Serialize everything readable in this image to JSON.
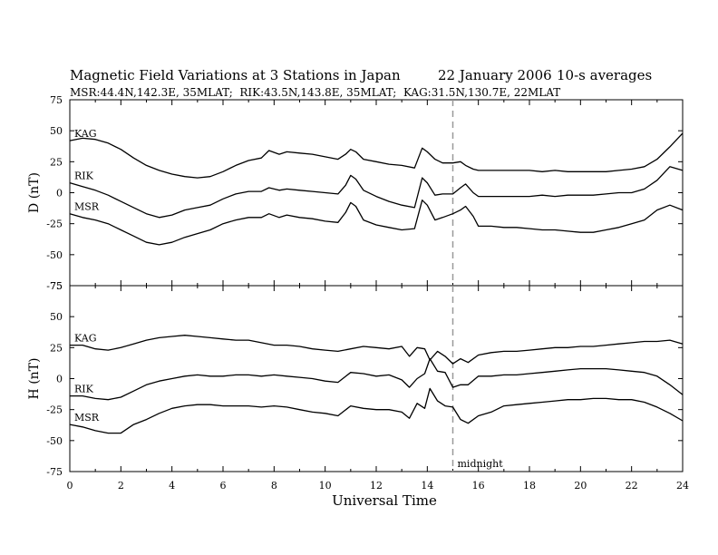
{
  "header": {
    "title": "Magnetic Field Variations at 3 Stations in Japan",
    "date": "22 January 2006",
    "averaging": "10-s averages",
    "stations_info": "MSR:44.4N,142.3E, 35MLAT;  RIK:43.5N,143.8E, 35MLAT;  KAG:31.5N,130.7E, 22MLAT"
  },
  "chart_data": {
    "type": "line",
    "xlabel": "Universal Time",
    "xlim": [
      0,
      24
    ],
    "x_ticks": [
      0,
      2,
      4,
      6,
      8,
      10,
      12,
      14,
      16,
      18,
      20,
      22,
      24
    ],
    "midnight": {
      "x": 15,
      "label": "midnight",
      "style": "dashed",
      "color": "#999999"
    },
    "panels": [
      {
        "ylabel": "D (nT)",
        "ylim": [
          -75,
          75
        ],
        "y_ticks": [
          75,
          50,
          25,
          0,
          -25,
          -50,
          -75
        ],
        "series": [
          {
            "name": "KAG",
            "x": [
              0,
              0.5,
              1,
              1.5,
              2,
              2.5,
              3,
              3.5,
              4,
              4.5,
              5,
              5.5,
              6,
              6.5,
              7,
              7.5,
              7.8,
              8.2,
              8.5,
              9,
              9.5,
              10,
              10.5,
              10.8,
              11,
              11.2,
              11.5,
              12,
              12.5,
              13,
              13.5,
              13.8,
              14,
              14.3,
              14.6,
              15,
              15.3,
              15.5,
              15.8,
              16,
              16.5,
              17,
              17.5,
              18,
              18.5,
              19,
              19.5,
              20,
              20.5,
              21,
              21.5,
              22,
              22.5,
              23,
              23.5,
              24
            ],
            "y": [
              42,
              44,
              43,
              40,
              35,
              28,
              22,
              18,
              15,
              13,
              12,
              13,
              17,
              22,
              26,
              28,
              34,
              31,
              33,
              32,
              31,
              29,
              27,
              31,
              35,
              33,
              27,
              25,
              23,
              22,
              20,
              36,
              33,
              27,
              24,
              24,
              25,
              22,
              19,
              18,
              18,
              18,
              18,
              18,
              17,
              18,
              17,
              17,
              17,
              17,
              18,
              19,
              21,
              27,
              37,
              48
            ]
          },
          {
            "name": "RIK",
            "x": [
              0,
              0.5,
              1,
              1.5,
              2,
              2.5,
              3,
              3.5,
              4,
              4.5,
              5,
              5.5,
              6,
              6.5,
              7,
              7.5,
              7.8,
              8.2,
              8.5,
              9,
              9.5,
              10,
              10.5,
              10.8,
              11,
              11.2,
              11.5,
              12,
              12.5,
              13,
              13.5,
              13.8,
              14,
              14.3,
              14.6,
              15,
              15.3,
              15.5,
              15.8,
              16,
              16.5,
              17,
              17.5,
              18,
              18.5,
              19,
              19.5,
              20,
              20.5,
              21,
              21.5,
              22,
              22.5,
              23,
              23.5,
              24
            ],
            "y": [
              8,
              5,
              2,
              -2,
              -7,
              -12,
              -17,
              -20,
              -18,
              -14,
              -12,
              -10,
              -5,
              -1,
              1,
              1,
              4,
              2,
              3,
              2,
              1,
              0,
              -1,
              6,
              14,
              11,
              2,
              -3,
              -7,
              -10,
              -12,
              12,
              8,
              -2,
              -1,
              -1,
              4,
              7,
              0,
              -3,
              -3,
              -3,
              -3,
              -3,
              -2,
              -3,
              -2,
              -2,
              -2,
              -1,
              0,
              0,
              3,
              10,
              21,
              18
            ]
          },
          {
            "name": "MSR",
            "x": [
              0,
              0.5,
              1,
              1.5,
              2,
              2.5,
              3,
              3.5,
              4,
              4.5,
              5,
              5.5,
              6,
              6.5,
              7,
              7.5,
              7.8,
              8.2,
              8.5,
              9,
              9.5,
              10,
              10.5,
              10.8,
              11,
              11.2,
              11.5,
              12,
              12.5,
              13,
              13.5,
              13.8,
              14,
              14.3,
              14.6,
              15,
              15.3,
              15.5,
              15.8,
              16,
              16.5,
              17,
              17.5,
              18,
              18.5,
              19,
              19.5,
              20,
              20.5,
              21,
              21.5,
              22,
              22.5,
              23,
              23.5,
              24
            ],
            "y": [
              -17,
              -20,
              -22,
              -25,
              -30,
              -35,
              -40,
              -42,
              -40,
              -36,
              -33,
              -30,
              -25,
              -22,
              -20,
              -20,
              -17,
              -20,
              -18,
              -20,
              -21,
              -23,
              -24,
              -16,
              -8,
              -11,
              -22,
              -26,
              -28,
              -30,
              -29,
              -6,
              -10,
              -22,
              -20,
              -17,
              -14,
              -11,
              -19,
              -27,
              -27,
              -28,
              -28,
              -29,
              -30,
              -30,
              -31,
              -32,
              -32,
              -30,
              -28,
              -25,
              -22,
              -14,
              -10,
              -14
            ]
          }
        ]
      },
      {
        "ylabel": "H (nT)",
        "ylim": [
          -75,
          75
        ],
        "y_ticks": [
          75,
          50,
          25,
          0,
          -25,
          -50,
          -75
        ],
        "series": [
          {
            "name": "KAG",
            "x": [
              0,
              0.5,
              1,
              1.5,
              2,
              2.5,
              3,
              3.5,
              4,
              4.5,
              5,
              5.5,
              6,
              6.5,
              7,
              7.5,
              8,
              8.5,
              9,
              9.5,
              10,
              10.5,
              11,
              11.5,
              12,
              12.5,
              13,
              13.3,
              13.6,
              13.9,
              14.1,
              14.4,
              14.7,
              15,
              15.3,
              15.6,
              16,
              16.5,
              17,
              17.5,
              18,
              18.5,
              19,
              19.5,
              20,
              20.5,
              21,
              21.5,
              22,
              22.5,
              23,
              23.5,
              24
            ],
            "y": [
              27,
              27,
              24,
              23,
              25,
              28,
              31,
              33,
              34,
              35,
              34,
              33,
              32,
              31,
              31,
              29,
              27,
              27,
              26,
              24,
              23,
              22,
              24,
              26,
              25,
              24,
              26,
              18,
              25,
              24,
              15,
              22,
              18,
              12,
              16,
              13,
              19,
              21,
              22,
              22,
              23,
              24,
              25,
              25,
              26,
              26,
              27,
              28,
              29,
              30,
              30,
              31,
              28
            ]
          },
          {
            "name": "RIK",
            "x": [
              0,
              0.5,
              1,
              1.5,
              2,
              2.5,
              3,
              3.5,
              4,
              4.5,
              5,
              5.5,
              6,
              6.5,
              7,
              7.5,
              8,
              8.5,
              9,
              9.5,
              10,
              10.5,
              11,
              11.5,
              12,
              12.5,
              13,
              13.3,
              13.6,
              13.9,
              14.1,
              14.4,
              14.7,
              15,
              15.3,
              15.6,
              16,
              16.5,
              17,
              17.5,
              18,
              18.5,
              19,
              19.5,
              20,
              20.5,
              21,
              21.5,
              22,
              22.5,
              23,
              23.5,
              24
            ],
            "y": [
              -14,
              -14,
              -16,
              -17,
              -15,
              -10,
              -5,
              -2,
              0,
              2,
              3,
              2,
              2,
              3,
              3,
              2,
              3,
              2,
              1,
              0,
              -2,
              -3,
              5,
              4,
              2,
              3,
              -1,
              -7,
              0,
              4,
              16,
              6,
              5,
              -7,
              -5,
              -5,
              2,
              2,
              3,
              3,
              4,
              5,
              6,
              7,
              8,
              8,
              8,
              7,
              6,
              5,
              2,
              -5,
              -13
            ]
          },
          {
            "name": "MSR",
            "x": [
              0,
              0.5,
              1,
              1.5,
              2,
              2.5,
              3,
              3.5,
              4,
              4.5,
              5,
              5.5,
              6,
              6.5,
              7,
              7.5,
              8,
              8.5,
              9,
              9.5,
              10,
              10.5,
              11,
              11.5,
              12,
              12.5,
              13,
              13.3,
              13.6,
              13.9,
              14.1,
              14.4,
              14.7,
              15,
              15.3,
              15.6,
              16,
              16.5,
              17,
              17.5,
              18,
              18.5,
              19,
              19.5,
              20,
              20.5,
              21,
              21.5,
              22,
              22.5,
              23,
              23.5,
              24
            ],
            "y": [
              -37,
              -39,
              -42,
              -44,
              -44,
              -37,
              -33,
              -28,
              -24,
              -22,
              -21,
              -21,
              -22,
              -22,
              -22,
              -23,
              -22,
              -23,
              -25,
              -27,
              -28,
              -30,
              -22,
              -24,
              -25,
              -25,
              -27,
              -32,
              -20,
              -24,
              -8,
              -18,
              -22,
              -23,
              -33,
              -36,
              -30,
              -27,
              -22,
              -21,
              -20,
              -19,
              -18,
              -17,
              -17,
              -16,
              -16,
              -17,
              -17,
              -19,
              -23,
              -28,
              -34
            ]
          }
        ]
      }
    ]
  }
}
